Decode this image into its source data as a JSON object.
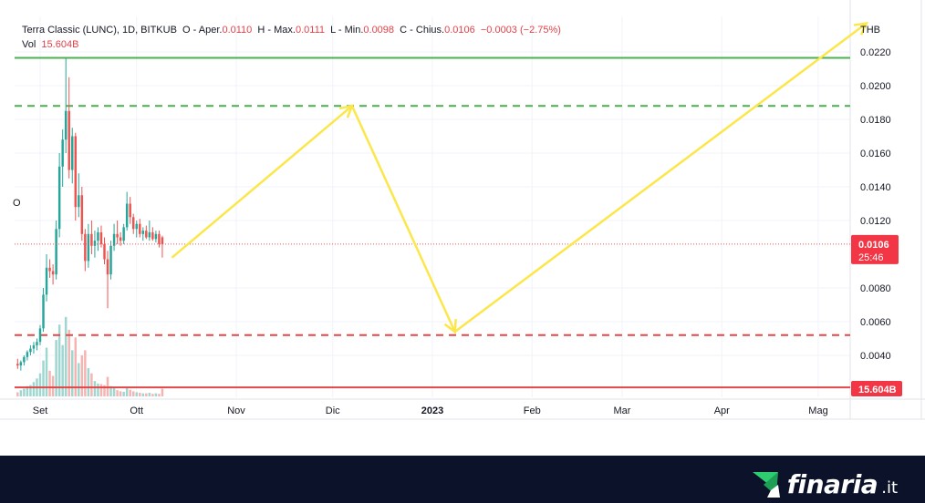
{
  "legend": {
    "symbol": "Terra Classic (LUNC), 1D, BITKUB",
    "open_label": "O - Aper.",
    "open": "0.0110",
    "high_label": "H - Max.",
    "high": "0.0111",
    "low_label": "L - Min.",
    "low": "0.0098",
    "close_label": "C - Chius.",
    "close": "0.0106",
    "change": "−0.0003 (−2.75%)",
    "vol_label": "Vol",
    "vol": "15.604B"
  },
  "left_axis_fragment": "O",
  "currency": "THB",
  "colors": {
    "up": "#26a69a",
    "down": "#ef5350",
    "support_line": "#e04848",
    "resistance_line": "#4caf50",
    "arrow": "#fbe74a",
    "badge": "#f23645",
    "footer_bg": "#0b1229",
    "brand_mark": "#2ecc71"
  },
  "brand": {
    "name": "finaria",
    "suffix": ".it",
    "mark_icon": "finaria-logo-icon"
  },
  "chart_data": {
    "type": "candlestick",
    "symbol": "Terra Classic (LUNC)",
    "interval": "1D",
    "exchange": "BITKUB",
    "ylim": [
      0.0021,
      0.023
    ],
    "yticks": [
      "0.0220",
      "0.0200",
      "0.0180",
      "0.0160",
      "0.0140",
      "0.0120",
      "0.0080",
      "0.0060",
      "0.0040"
    ],
    "yticks_values": [
      0.022,
      0.02,
      0.018,
      0.016,
      0.014,
      0.012,
      0.008,
      0.006,
      0.004
    ],
    "x_labels": [
      {
        "label": "Set",
        "day": 0,
        "bold": false
      },
      {
        "label": "Ott",
        "day": 30,
        "bold": false
      },
      {
        "label": "Nov",
        "day": 61,
        "bold": false
      },
      {
        "label": "Dic",
        "day": 91,
        "bold": false
      },
      {
        "label": "2023",
        "day": 122,
        "bold": true
      },
      {
        "label": "Feb",
        "day": 153,
        "bold": false
      },
      {
        "label": "Mar",
        "day": 181,
        "bold": false
      },
      {
        "label": "Apr",
        "day": 212,
        "bold": false
      },
      {
        "label": "Mag",
        "day": 242,
        "bold": false
      }
    ],
    "x_range_days": [
      -7,
      252
    ],
    "price_badge": {
      "value": "0.0106",
      "countdown": "25:46",
      "price": 0.0106
    },
    "volume_badge": "15.604B",
    "horizontal_lines": [
      {
        "price": 0.02165,
        "style": "solid",
        "color": "#4caf50"
      },
      {
        "price": 0.0188,
        "style": "dashed",
        "color": "#4caf50"
      },
      {
        "price": 0.0052,
        "style": "dashed",
        "color": "#e04848"
      },
      {
        "price": 0.0021,
        "style": "solid",
        "color": "#e04848"
      }
    ],
    "projection_path": [
      {
        "day": 41,
        "price": 0.0098
      },
      {
        "day": 97,
        "price": 0.0188
      },
      {
        "day": 129,
        "price": 0.0054
      },
      {
        "day": 257,
        "price": 0.0237
      }
    ],
    "candles": [
      {
        "day": -7,
        "o": 0.0035,
        "h": 0.0038,
        "l": 0.0032,
        "c": 0.0034
      },
      {
        "day": -6,
        "o": 0.0034,
        "h": 0.0037,
        "l": 0.0031,
        "c": 0.0036
      },
      {
        "day": -5,
        "o": 0.0036,
        "h": 0.004,
        "l": 0.0034,
        "c": 0.0039
      },
      {
        "day": -4,
        "o": 0.0039,
        "h": 0.0043,
        "l": 0.0037,
        "c": 0.0042
      },
      {
        "day": -3,
        "o": 0.0042,
        "h": 0.0046,
        "l": 0.004,
        "c": 0.0044
      },
      {
        "day": -2,
        "o": 0.0044,
        "h": 0.0048,
        "l": 0.0041,
        "c": 0.0046
      },
      {
        "day": -1,
        "o": 0.0046,
        "h": 0.005,
        "l": 0.0043,
        "c": 0.0048
      },
      {
        "day": 0,
        "o": 0.0048,
        "h": 0.0058,
        "l": 0.0046,
        "c": 0.0056
      },
      {
        "day": 1,
        "o": 0.0056,
        "h": 0.008,
        "l": 0.0054,
        "c": 0.0076
      },
      {
        "day": 2,
        "o": 0.0076,
        "h": 0.01,
        "l": 0.0072,
        "c": 0.0092
      },
      {
        "day": 3,
        "o": 0.0092,
        "h": 0.0097,
        "l": 0.0086,
        "c": 0.009
      },
      {
        "day": 4,
        "o": 0.009,
        "h": 0.0094,
        "l": 0.0082,
        "c": 0.0088
      },
      {
        "day": 5,
        "o": 0.0088,
        "h": 0.012,
        "l": 0.0085,
        "c": 0.0115
      },
      {
        "day": 6,
        "o": 0.0115,
        "h": 0.016,
        "l": 0.011,
        "c": 0.0152
      },
      {
        "day": 7,
        "o": 0.0152,
        "h": 0.0174,
        "l": 0.014,
        "c": 0.0168
      },
      {
        "day": 8,
        "o": 0.0168,
        "h": 0.0216,
        "l": 0.016,
        "c": 0.0185
      },
      {
        "day": 9,
        "o": 0.0185,
        "h": 0.0205,
        "l": 0.0145,
        "c": 0.015
      },
      {
        "day": 10,
        "o": 0.015,
        "h": 0.0175,
        "l": 0.0142,
        "c": 0.017
      },
      {
        "day": 11,
        "o": 0.017,
        "h": 0.0172,
        "l": 0.012,
        "c": 0.0128
      },
      {
        "day": 12,
        "o": 0.0128,
        "h": 0.0148,
        "l": 0.0122,
        "c": 0.0135
      },
      {
        "day": 13,
        "o": 0.0135,
        "h": 0.014,
        "l": 0.0108,
        "c": 0.0112
      },
      {
        "day": 14,
        "o": 0.0112,
        "h": 0.0115,
        "l": 0.009,
        "c": 0.0096
      },
      {
        "day": 15,
        "o": 0.0096,
        "h": 0.0118,
        "l": 0.0092,
        "c": 0.0112
      },
      {
        "day": 16,
        "o": 0.0112,
        "h": 0.012,
        "l": 0.01,
        "c": 0.0105
      },
      {
        "day": 17,
        "o": 0.0105,
        "h": 0.0114,
        "l": 0.0098,
        "c": 0.0108
      },
      {
        "day": 18,
        "o": 0.0108,
        "h": 0.0116,
        "l": 0.0102,
        "c": 0.0113
      },
      {
        "day": 19,
        "o": 0.0113,
        "h": 0.0117,
        "l": 0.0104,
        "c": 0.0106
      },
      {
        "day": 20,
        "o": 0.0106,
        "h": 0.011,
        "l": 0.0094,
        "c": 0.0097
      },
      {
        "day": 21,
        "o": 0.0097,
        "h": 0.0102,
        "l": 0.0068,
        "c": 0.0088
      },
      {
        "day": 22,
        "o": 0.0088,
        "h": 0.0108,
        "l": 0.0085,
        "c": 0.0105
      },
      {
        "day": 23,
        "o": 0.0105,
        "h": 0.0118,
        "l": 0.0102,
        "c": 0.0112
      },
      {
        "day": 24,
        "o": 0.0112,
        "h": 0.012,
        "l": 0.0106,
        "c": 0.011
      },
      {
        "day": 25,
        "o": 0.011,
        "h": 0.0113,
        "l": 0.0105,
        "c": 0.0108
      },
      {
        "day": 26,
        "o": 0.0108,
        "h": 0.0118,
        "l": 0.0106,
        "c": 0.0116
      },
      {
        "day": 27,
        "o": 0.0116,
        "h": 0.0137,
        "l": 0.0114,
        "c": 0.013
      },
      {
        "day": 28,
        "o": 0.013,
        "h": 0.0134,
        "l": 0.0118,
        "c": 0.0122
      },
      {
        "day": 29,
        "o": 0.0122,
        "h": 0.0124,
        "l": 0.0112,
        "c": 0.0115
      },
      {
        "day": 30,
        "o": 0.0115,
        "h": 0.012,
        "l": 0.011,
        "c": 0.0118
      },
      {
        "day": 31,
        "o": 0.0118,
        "h": 0.0121,
        "l": 0.011,
        "c": 0.0112
      },
      {
        "day": 32,
        "o": 0.0112,
        "h": 0.0116,
        "l": 0.0108,
        "c": 0.0114
      },
      {
        "day": 33,
        "o": 0.0114,
        "h": 0.0117,
        "l": 0.0109,
        "c": 0.011
      },
      {
        "day": 34,
        "o": 0.011,
        "h": 0.012,
        "l": 0.0108,
        "c": 0.0113
      },
      {
        "day": 35,
        "o": 0.0113,
        "h": 0.0116,
        "l": 0.0108,
        "c": 0.0109
      },
      {
        "day": 36,
        "o": 0.0109,
        "h": 0.0114,
        "l": 0.0107,
        "c": 0.0112
      },
      {
        "day": 37,
        "o": 0.0112,
        "h": 0.0114,
        "l": 0.0104,
        "c": 0.0106
      },
      {
        "day": 38,
        "o": 0.011,
        "h": 0.0111,
        "l": 0.0098,
        "c": 0.0106
      }
    ],
    "volumes": [
      {
        "day": -7,
        "v": 0.8,
        "up": false
      },
      {
        "day": -6,
        "v": 1.2,
        "up": true
      },
      {
        "day": -5,
        "v": 1.5,
        "up": true
      },
      {
        "day": -4,
        "v": 2.0,
        "up": true
      },
      {
        "day": -3,
        "v": 2.2,
        "up": true
      },
      {
        "day": -2,
        "v": 2.8,
        "up": true
      },
      {
        "day": -1,
        "v": 3.5,
        "up": true
      },
      {
        "day": 0,
        "v": 4.5,
        "up": true
      },
      {
        "day": 1,
        "v": 7.0,
        "up": true
      },
      {
        "day": 2,
        "v": 9.5,
        "up": true
      },
      {
        "day": 3,
        "v": 5.0,
        "up": false
      },
      {
        "day": 4,
        "v": 4.0,
        "up": false
      },
      {
        "day": 5,
        "v": 11.0,
        "up": true
      },
      {
        "day": 6,
        "v": 14.0,
        "up": true
      },
      {
        "day": 7,
        "v": 10.0,
        "up": true
      },
      {
        "day": 8,
        "v": 15.5,
        "up": true
      },
      {
        "day": 9,
        "v": 13.0,
        "up": false
      },
      {
        "day": 10,
        "v": 9.0,
        "up": true
      },
      {
        "day": 11,
        "v": 11.5,
        "up": false
      },
      {
        "day": 12,
        "v": 6.5,
        "up": true
      },
      {
        "day": 13,
        "v": 8.0,
        "up": false
      },
      {
        "day": 14,
        "v": 9.0,
        "up": false
      },
      {
        "day": 15,
        "v": 5.5,
        "up": true
      },
      {
        "day": 16,
        "v": 4.5,
        "up": false
      },
      {
        "day": 17,
        "v": 3.0,
        "up": true
      },
      {
        "day": 18,
        "v": 2.5,
        "up": true
      },
      {
        "day": 19,
        "v": 2.4,
        "up": false
      },
      {
        "day": 20,
        "v": 2.2,
        "up": false
      },
      {
        "day": 21,
        "v": 3.8,
        "up": false
      },
      {
        "day": 22,
        "v": 2.0,
        "up": true
      },
      {
        "day": 23,
        "v": 1.6,
        "up": true
      },
      {
        "day": 24,
        "v": 1.2,
        "up": false
      },
      {
        "day": 25,
        "v": 1.0,
        "up": false
      },
      {
        "day": 26,
        "v": 0.9,
        "up": true
      },
      {
        "day": 27,
        "v": 1.8,
        "up": true
      },
      {
        "day": 28,
        "v": 1.3,
        "up": false
      },
      {
        "day": 29,
        "v": 1.0,
        "up": false
      },
      {
        "day": 30,
        "v": 0.8,
        "up": true
      },
      {
        "day": 31,
        "v": 0.7,
        "up": false
      },
      {
        "day": 32,
        "v": 0.6,
        "up": true
      },
      {
        "day": 33,
        "v": 0.6,
        "up": false
      },
      {
        "day": 34,
        "v": 0.7,
        "up": true
      },
      {
        "day": 35,
        "v": 0.5,
        "up": false
      },
      {
        "day": 36,
        "v": 0.6,
        "up": true
      },
      {
        "day": 37,
        "v": 0.5,
        "up": false
      },
      {
        "day": 38,
        "v": 1.5,
        "up": false
      }
    ],
    "volume_max": 16
  }
}
